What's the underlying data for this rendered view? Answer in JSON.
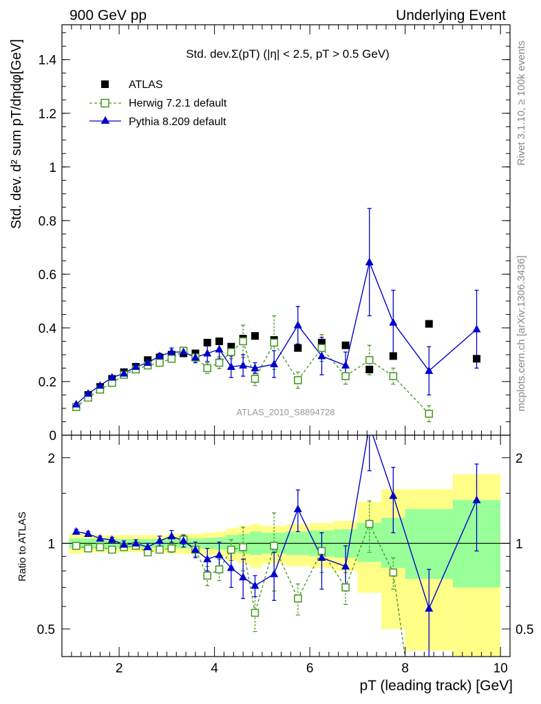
{
  "header": {
    "left": "900 GeV pp",
    "right": "Underlying Event"
  },
  "side_text": {
    "rivet": "Rivet 3.1.10, ≥ 100k events",
    "mcplots": "mcplots.cern.ch [arXiv:1306.3436]"
  },
  "chart_data": [
    {
      "type": "scatter",
      "title": "Std. dev.Σ(pT) (|η| < 2.5, pT > 0.5 GeV)",
      "ylabel": "Std. dev. d² sum pT/dηdφ[GeV]",
      "xlabel": "pT (leading track) [GeV]",
      "watermark": "ATLAS_2010_S8894728",
      "legend_position": "top-left",
      "xlim": [
        0.8,
        10.2
      ],
      "ylim": [
        0,
        1.53
      ],
      "ytick_labels": [
        "0",
        "0.2",
        "0.4",
        "0.6",
        "0.8",
        "1",
        "1.2",
        "1.4"
      ],
      "ytick_values": [
        0,
        0.2,
        0.4,
        0.6,
        0.8,
        1.0,
        1.2,
        1.4
      ],
      "series": [
        {
          "name": "ATLAS",
          "color": "#000000",
          "marker": "filled-square",
          "x": [
            1.1,
            1.35,
            1.6,
            1.85,
            2.1,
            2.35,
            2.6,
            2.85,
            3.1,
            3.35,
            3.6,
            3.85,
            4.1,
            4.35,
            4.6,
            4.85,
            5.25,
            5.75,
            6.25,
            6.75,
            7.25,
            7.75,
            8.5,
            9.5
          ],
          "y": [
            0.105,
            0.15,
            0.18,
            0.21,
            0.235,
            0.255,
            0.28,
            0.29,
            0.3,
            0.305,
            0.305,
            0.345,
            0.35,
            0.33,
            0.36,
            0.37,
            0.355,
            0.325,
            0.345,
            0.335,
            0.245,
            0.295,
            0.415,
            0.285
          ]
        },
        {
          "name": "Herwig 7.2.1 default",
          "color": "#4c9a2a",
          "marker": "open-square",
          "line": "dashed",
          "x": [
            1.1,
            1.35,
            1.6,
            1.85,
            2.1,
            2.35,
            2.6,
            2.85,
            3.1,
            3.35,
            3.6,
            3.85,
            4.1,
            4.35,
            4.6,
            4.85,
            5.25,
            5.75,
            6.25,
            6.75,
            7.25,
            7.75,
            8.5
          ],
          "y": [
            0.105,
            0.14,
            0.17,
            0.195,
            0.225,
            0.245,
            0.26,
            0.27,
            0.285,
            0.315,
            0.29,
            0.25,
            0.27,
            0.31,
            0.35,
            0.21,
            0.345,
            0.205,
            0.325,
            0.22,
            0.28,
            0.22,
            0.08
          ],
          "err": [
            0.005,
            0.005,
            0.005,
            0.005,
            0.005,
            0.005,
            0.007,
            0.008,
            0.01,
            0.012,
            0.015,
            0.02,
            0.022,
            0.025,
            0.06,
            0.025,
            0.1,
            0.03,
            0.05,
            0.03,
            0.055,
            0.03,
            0.03
          ]
        },
        {
          "name": "Pythia 8.209 default",
          "color": "#0000cc",
          "marker": "filled-triangle",
          "line": "solid",
          "x": [
            1.1,
            1.35,
            1.6,
            1.85,
            2.1,
            2.35,
            2.6,
            2.85,
            3.1,
            3.35,
            3.6,
            3.85,
            4.1,
            4.35,
            4.6,
            4.85,
            5.25,
            5.75,
            6.25,
            6.75,
            7.25,
            7.75,
            8.5,
            9.5
          ],
          "y": [
            0.115,
            0.155,
            0.185,
            0.215,
            0.23,
            0.255,
            0.27,
            0.295,
            0.31,
            0.31,
            0.29,
            0.305,
            0.32,
            0.255,
            0.26,
            0.25,
            0.265,
            0.41,
            0.295,
            0.26,
            0.645,
            0.42,
            0.24,
            0.395
          ],
          "err": [
            0.005,
            0.005,
            0.005,
            0.005,
            0.006,
            0.007,
            0.008,
            0.01,
            0.015,
            0.015,
            0.02,
            0.03,
            0.035,
            0.04,
            0.04,
            0.02,
            0.05,
            0.07,
            0.07,
            0.05,
            0.2,
            0.12,
            0.09,
            0.145
          ]
        }
      ]
    },
    {
      "type": "scatter",
      "ylabel": "Ratio to ATLAS",
      "ylim_log": [
        0.4,
        2.4
      ],
      "ytick_labels": [
        "0.5",
        "1",
        "2"
      ],
      "ytick_values": [
        0.5,
        1,
        2
      ],
      "xtick_labels": [
        "2",
        "4",
        "6",
        "8",
        "10"
      ],
      "xtick_values": [
        2,
        4,
        6,
        8,
        10
      ],
      "reference_line": 1,
      "band_bins": {
        "edges": [
          0.95,
          1.25,
          1.5,
          1.75,
          2.0,
          2.25,
          2.5,
          2.75,
          3.0,
          3.25,
          3.5,
          3.75,
          4.0,
          4.25,
          4.5,
          4.75,
          5.0,
          5.5,
          6.0,
          6.5,
          7.0,
          7.5,
          8.0,
          9.0,
          10.0
        ],
        "inner_color": "#99ff99",
        "outer_color": "#ffff88",
        "inner": [
          [
            0.96,
            1.04
          ],
          [
            0.96,
            1.04
          ],
          [
            0.96,
            1.04
          ],
          [
            0.965,
            1.035
          ],
          [
            0.965,
            1.035
          ],
          [
            0.965,
            1.035
          ],
          [
            0.965,
            1.035
          ],
          [
            0.965,
            1.035
          ],
          [
            0.965,
            1.035
          ],
          [
            0.96,
            1.04
          ],
          [
            0.96,
            1.04
          ],
          [
            0.955,
            1.045
          ],
          [
            0.95,
            1.05
          ],
          [
            0.93,
            1.07
          ],
          [
            0.92,
            1.08
          ],
          [
            0.91,
            1.1
          ],
          [
            0.92,
            1.09
          ],
          [
            0.91,
            1.1
          ],
          [
            0.9,
            1.11
          ],
          [
            0.89,
            1.12
          ],
          [
            0.86,
            1.18
          ],
          [
            0.82,
            1.23
          ],
          [
            0.75,
            1.32
          ],
          [
            0.7,
            1.42
          ]
        ],
        "outer": [
          [
            0.92,
            1.08
          ],
          [
            0.93,
            1.07
          ],
          [
            0.93,
            1.07
          ],
          [
            0.93,
            1.07
          ],
          [
            0.93,
            1.07
          ],
          [
            0.93,
            1.07
          ],
          [
            0.93,
            1.07
          ],
          [
            0.93,
            1.07
          ],
          [
            0.92,
            1.08
          ],
          [
            0.92,
            1.08
          ],
          [
            0.92,
            1.08
          ],
          [
            0.91,
            1.09
          ],
          [
            0.9,
            1.1
          ],
          [
            0.87,
            1.13
          ],
          [
            0.85,
            1.15
          ],
          [
            0.82,
            1.17
          ],
          [
            0.85,
            1.15
          ],
          [
            0.83,
            1.17
          ],
          [
            0.82,
            1.18
          ],
          [
            0.8,
            1.2
          ],
          [
            0.67,
            1.4
          ],
          [
            0.5,
            1.55
          ],
          [
            0.42,
            1.55
          ],
          [
            0.38,
            1.75
          ]
        ]
      },
      "series": [
        {
          "name": "Herwig 7.2.1 default",
          "color": "#4c9a2a",
          "x": [
            1.1,
            1.35,
            1.6,
            1.85,
            2.1,
            2.35,
            2.6,
            2.85,
            3.1,
            3.35,
            3.6,
            3.85,
            4.1,
            4.35,
            4.6,
            4.85,
            5.25,
            5.75,
            6.25,
            6.75,
            7.25,
            7.75,
            8.1
          ],
          "y": [
            0.98,
            0.96,
            0.97,
            0.95,
            0.97,
            0.98,
            0.93,
            0.95,
            0.96,
            1.03,
            0.95,
            0.77,
            0.81,
            0.95,
            0.97,
            0.57,
            0.98,
            0.64,
            0.94,
            0.7,
            1.17,
            0.79,
            0.3
          ],
          "err": [
            0.02,
            0.02,
            0.02,
            0.02,
            0.02,
            0.02,
            0.02,
            0.025,
            0.03,
            0.04,
            0.05,
            0.06,
            0.07,
            0.08,
            0.17,
            0.08,
            0.3,
            0.08,
            0.15,
            0.09,
            0.24,
            0.1,
            0.0
          ]
        },
        {
          "name": "Pythia 8.209 default",
          "color": "#0000cc",
          "x": [
            1.1,
            1.35,
            1.6,
            1.85,
            2.1,
            2.35,
            2.6,
            2.85,
            3.1,
            3.35,
            3.6,
            3.85,
            4.1,
            4.35,
            4.6,
            4.85,
            5.25,
            5.75,
            6.25,
            6.75,
            7.25,
            7.75,
            8.5,
            9.5
          ],
          "y": [
            1.1,
            1.08,
            1.04,
            1.03,
            0.99,
            1.0,
            0.97,
            1.02,
            1.06,
            1.02,
            0.95,
            0.88,
            0.91,
            0.82,
            0.76,
            0.71,
            0.78,
            1.32,
            0.89,
            0.83,
            2.6,
            1.47,
            0.59,
            1.42
          ],
          "err": [
            0.02,
            0.02,
            0.02,
            0.02,
            0.03,
            0.03,
            0.03,
            0.04,
            0.05,
            0.05,
            0.06,
            0.08,
            0.1,
            0.12,
            0.12,
            0.06,
            0.15,
            0.22,
            0.2,
            0.15,
            0.8,
            0.38,
            0.22,
            0.48
          ]
        }
      ]
    }
  ]
}
